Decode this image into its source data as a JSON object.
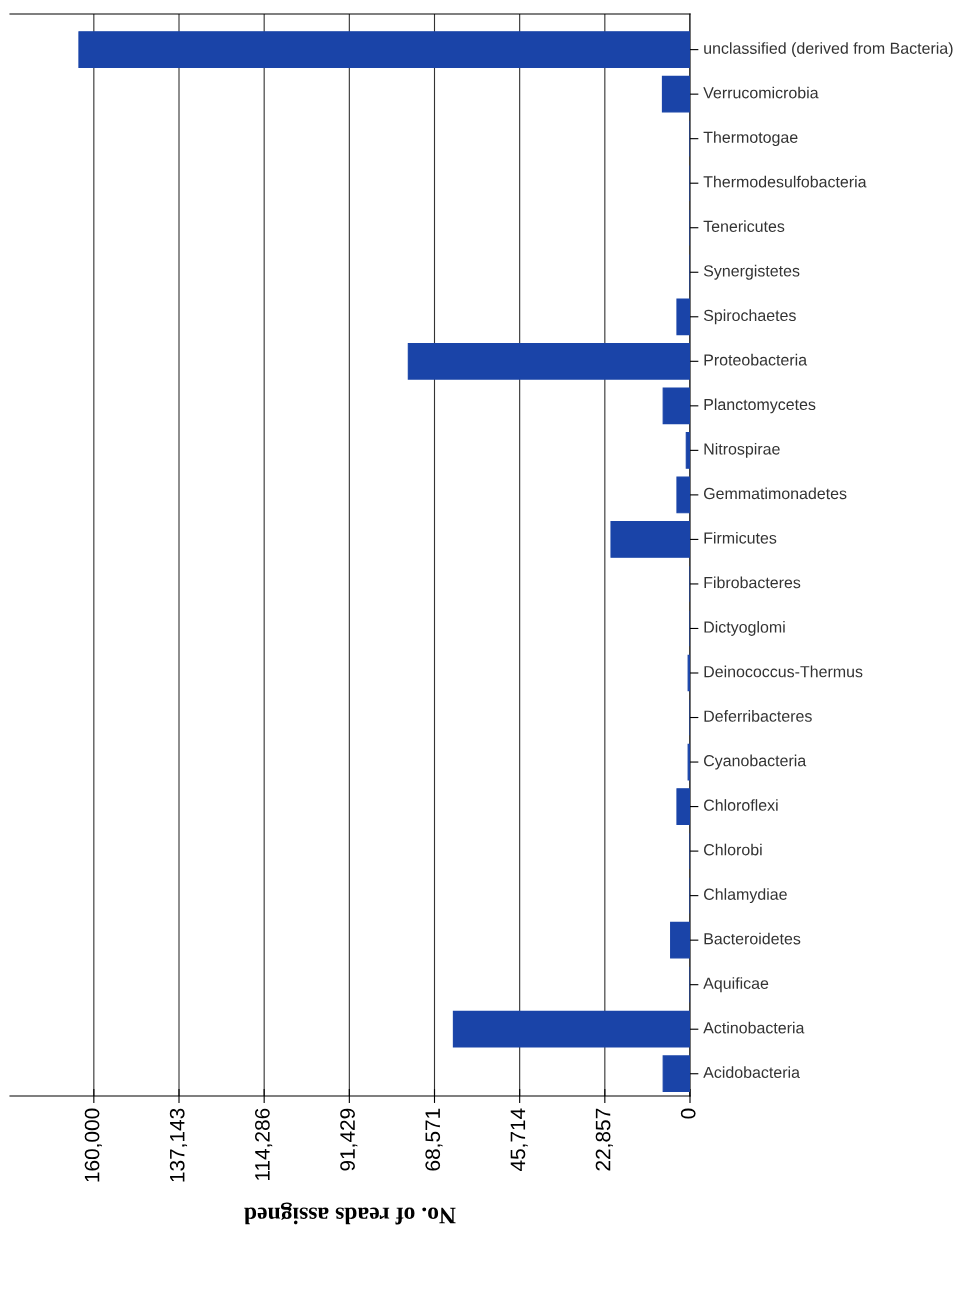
{
  "chart_data": {
    "type": "bar",
    "orientation": "horizontal",
    "xlabel": "No. of reads assigned",
    "categories": [
      "unclassified (derived from Bacteria)",
      "Verrucomicrobia",
      "Thermotogae",
      "Thermodesulfobacteria",
      "Tenericutes",
      "Synergistetes",
      "Spirochaetes",
      "Proteobacteria",
      "Planctomycetes",
      "Nitrospirae",
      "Gemmatimonadetes",
      "Firmicutes",
      "Fibrobacteres",
      "Dictyoglomi",
      "Deinococcus-Thermus",
      "Deferribacteres",
      "Cyanobacteria",
      "Chloroflexi",
      "Chlorobi",
      "Chlamydiae",
      "Bacteroidetes",
      "Aquificae",
      "Actinobacteria",
      "Acidobacteria"
    ],
    "values": [
      164000,
      7400,
      0,
      0,
      0,
      0,
      3500,
      75600,
      7200,
      1000,
      3500,
      21200,
      0,
      0,
      500,
      0,
      500,
      3500,
      0,
      0,
      5200,
      0,
      63500,
      7200
    ],
    "color": "#1a44a8",
    "xlim": [
      182500,
      0
    ],
    "xticks": [
      {
        "value": 160000,
        "label": "160,000"
      },
      {
        "value": 137143,
        "label": "137,143"
      },
      {
        "value": 114286,
        "label": "114,286"
      },
      {
        "value": 91429,
        "label": "91,429"
      },
      {
        "value": 68571,
        "label": "68,571"
      },
      {
        "value": 45714,
        "label": "45,714"
      },
      {
        "value": 22857,
        "label": "22,857"
      },
      0
    ],
    "grid": "x"
  }
}
